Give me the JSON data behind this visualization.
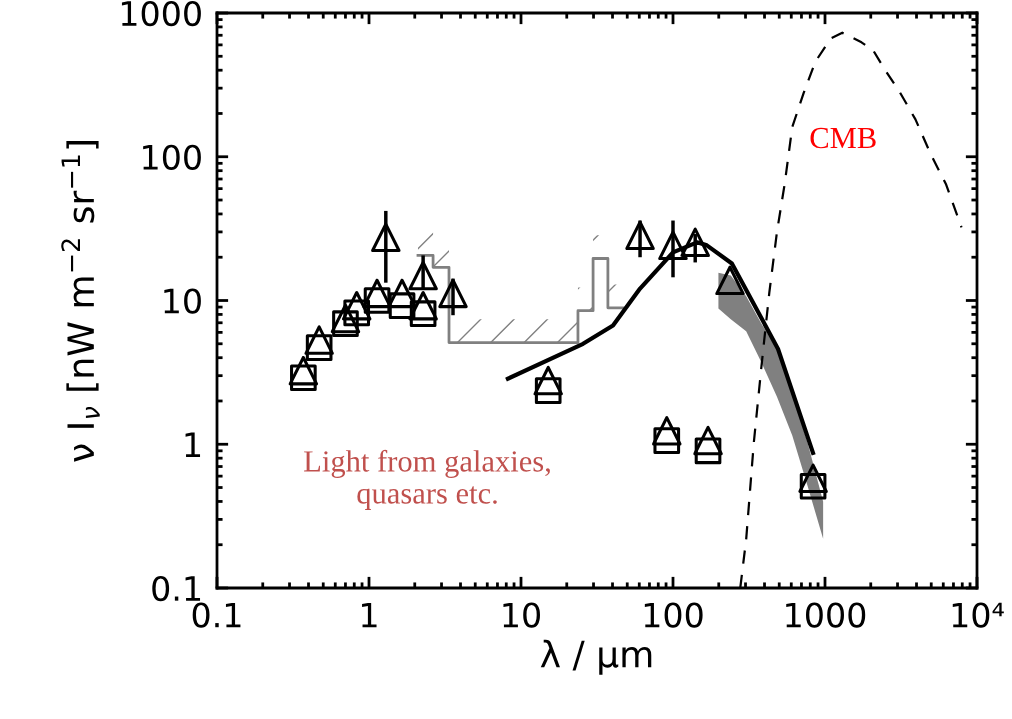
{
  "chart_data": {
    "type": "scatter",
    "xlabel": "λ / μm",
    "ylabel": "ν I$_{ν}$ [nW m$^{−2}$ sr$^{−1}$]",
    "log": "xy",
    "xlim": [
      0.1,
      10000
    ],
    "ylim": [
      0.1,
      1000
    ],
    "xticks": [
      0.1,
      1,
      10,
      100,
      1000,
      {
        "value": 10000,
        "label": "10⁴"
      }
    ],
    "yticks": [
      0.1,
      1,
      10,
      100,
      1000
    ],
    "grid": false,
    "legend": false,
    "series": [
      {
        "type": "area",
        "color": "#808080",
        "x": [
          199,
          240,
          303,
          382,
          483,
          609,
          769,
          972
        ],
        "values": [
          null,
          null,
          null,
          null,
          null,
          null,
          null,
          null
        ],
        "upper": [
          15.6,
          14.9,
          10.7,
          6.9,
          4.6,
          2.29,
          1.02,
          0.4
        ],
        "lower": [
          8.8,
          7.4,
          6.1,
          3.7,
          2.14,
          1.15,
          0.51,
          0.22
        ]
      },
      {
        "type": "step",
        "color": "#808080",
        "line_style": "solid",
        "x": [
          2.1,
          2.64,
          3.36,
          23.7,
          29.8,
          37.3,
          46.9
        ],
        "values": [
          20.6,
          17.0,
          5.1,
          8.5,
          19.6,
          8.9,
          8.9
        ]
      },
      {
        "type": "line",
        "color": "#000000",
        "line_style": "dashed",
        "x": [
          277,
          303,
          340,
          382,
          430,
          483,
          542,
          609,
          726,
          865,
          1091,
          1300,
          1738,
          2070,
          2466,
          3112,
          3936,
          4966,
          6266,
          7907
        ],
        "values": [
          0.1,
          0.218,
          1.02,
          3.5,
          11.3,
          30,
          64,
          161,
          280,
          459,
          665,
          729,
          625,
          552,
          406,
          280,
          182,
          104,
          64,
          32.3
        ]
      },
      {
        "type": "line",
        "color": "#000000",
        "line_style": "solid",
        "x": [
          8.2,
          25.6,
          40.3,
          60.7,
          100,
          144,
          167,
          244,
          491,
          834
        ],
        "values": [
          2.86,
          5.0,
          6.7,
          12.1,
          21.6,
          25.4,
          24.2,
          18.1,
          4.6,
          0.87
        ]
      },
      {
        "color": "#000000",
        "marker": "square",
        "x": [
          0.37,
          0.47,
          0.7,
          0.83,
          1.13,
          1.65,
          2.27,
          15.1,
          91,
          170,
          835
        ],
        "values": [
          2.9,
          4.7,
          6.9,
          8.2,
          10,
          9.2,
          8.1,
          2.36,
          1.06,
          0.9,
          0.51
        ]
      },
      {
        "color": "#000000",
        "marker": "triangle",
        "x": [
          0.37,
          0.47,
          0.7,
          0.83,
          1.13,
          1.29,
          1.65,
          2.27,
          2.27,
          3.57,
          15.1,
          60.7,
          91,
          100,
          140,
          170,
          237,
          835
        ],
        "values": [
          3.25,
          5.3,
          7.5,
          9.2,
          11.2,
          27.5,
          11.2,
          9.2,
          14.9,
          11.2,
          2.77,
          28.4,
          1.24,
          24.2,
          25.4,
          1.06,
          13.8,
          0.58
        ],
        "errors": [
          null,
          null,
          null,
          null,
          null,
          [
            13.3,
            42
          ],
          null,
          null,
          [
            12.1,
            20.6
          ],
          [
            7.9,
            14.2
          ],
          null,
          [
            20,
            36
          ],
          null,
          [
            14.5,
            36
          ],
          [
            18.4,
            29
          ],
          null,
          null,
          null
        ]
      }
    ],
    "annotations": [
      "CMB",
      "Light from galaxies,\nquasars etc."
    ]
  }
}
